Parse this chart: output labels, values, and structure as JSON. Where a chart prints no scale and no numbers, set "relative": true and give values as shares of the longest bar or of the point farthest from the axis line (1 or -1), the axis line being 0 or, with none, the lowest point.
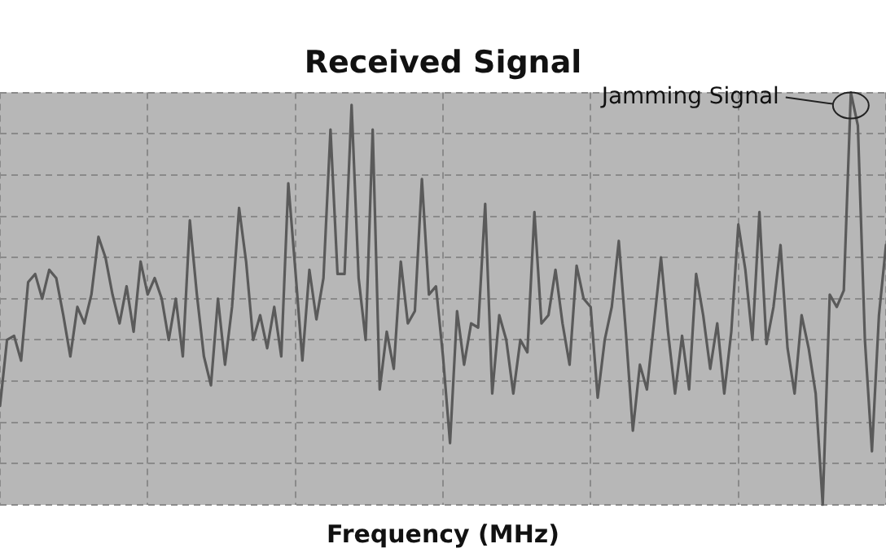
{
  "chart_data": {
    "type": "line",
    "title": "Received Signal",
    "xlabel": "Frequency (MHz)",
    "relative": true,
    "grid": true,
    "legend": false,
    "marker": "none",
    "line_style": "solid",
    "annotations": [
      "Jamming Signal"
    ],
    "categories": [
      null,
      null,
      null,
      null,
      null,
      null,
      null,
      null,
      null,
      null,
      null,
      null,
      null,
      null,
      null,
      null,
      null,
      null,
      null,
      null,
      null,
      null,
      null,
      null,
      null,
      null,
      null,
      null,
      null,
      null,
      null,
      null,
      null,
      null,
      null,
      null,
      null,
      null,
      null,
      null,
      null,
      null,
      null,
      null,
      null,
      null,
      null,
      null,
      null,
      null,
      null,
      null,
      null,
      null,
      null,
      null,
      null,
      null,
      null,
      null,
      null,
      null,
      null,
      null,
      null,
      null,
      null,
      null,
      null,
      null,
      null,
      null,
      null,
      null,
      null,
      null,
      null,
      null,
      null,
      null,
      null,
      null,
      null,
      null,
      null,
      null,
      null,
      null,
      null,
      null,
      null,
      null,
      null,
      null,
      null,
      null,
      null,
      null,
      null,
      null,
      null,
      null,
      null,
      null,
      null,
      null,
      null,
      null,
      null,
      null,
      null,
      null,
      null,
      null,
      null,
      null,
      null,
      null,
      null,
      null,
      null,
      null,
      null,
      null,
      null,
      null,
      null
    ],
    "series": [
      {
        "color": "#5a5a5a",
        "values": [
          0.24,
          0.4,
          0.41,
          0.35,
          0.54,
          0.56,
          0.5,
          0.57,
          0.55,
          0.46,
          0.36,
          0.48,
          0.44,
          0.51,
          0.65,
          0.6,
          0.51,
          0.44,
          0.53,
          0.42,
          0.59,
          0.51,
          0.55,
          0.5,
          0.4,
          0.5,
          0.36,
          0.69,
          0.51,
          0.36,
          0.29,
          0.5,
          0.34,
          0.48,
          0.72,
          0.59,
          0.4,
          0.46,
          0.38,
          0.48,
          0.36,
          0.78,
          0.57,
          0.35,
          0.57,
          0.45,
          0.55,
          0.91,
          0.56,
          0.56,
          0.97,
          0.55,
          0.4,
          0.91,
          0.28,
          0.42,
          0.33,
          0.59,
          0.44,
          0.47,
          0.79,
          0.51,
          0.53,
          0.36,
          0.15,
          0.47,
          0.34,
          0.44,
          0.43,
          0.73,
          0.27,
          0.46,
          0.4,
          0.27,
          0.4,
          0.37,
          0.71,
          0.44,
          0.46,
          0.57,
          0.44,
          0.34,
          0.58,
          0.5,
          0.48,
          0.26,
          0.4,
          0.48,
          0.64,
          0.42,
          0.18,
          0.34,
          0.28,
          0.44,
          0.6,
          0.42,
          0.27,
          0.41,
          0.28,
          0.56,
          0.46,
          0.33,
          0.44,
          0.27,
          0.42,
          0.68,
          0.57,
          0.4,
          0.71,
          0.39,
          0.48,
          0.63,
          0.38,
          0.27,
          0.46,
          0.38,
          0.27,
          0,
          0.51,
          0.48,
          0.52,
          1,
          0.92,
          0.4,
          0.13,
          0.46,
          0.63
        ]
      }
    ]
  }
}
